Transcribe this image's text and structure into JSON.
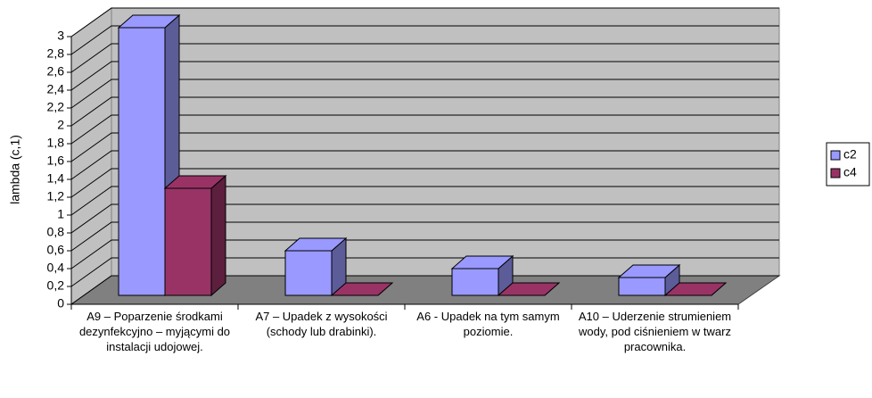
{
  "chart_data": {
    "type": "bar3d",
    "y_label": "lambda (c,1)",
    "categories": [
      "A9 – Poparzenie środkami dezynfekcyjno – myjącymi do instalacji udojowej.",
      "A7 – Upadek z wysokości (schody lub drabinki).",
      "A6 - Upadek na tym samym poziomie.",
      "A10 – Uderzenie strumieniem wody, pod ciśnieniem w twarz pracownika."
    ],
    "series": [
      {
        "name": "c2",
        "color": "#9999ff",
        "side": "#5c5c99",
        "values": [
          3,
          0.5,
          0.3,
          0.2
        ]
      },
      {
        "name": "c4",
        "color": "#993366",
        "side": "#5c1f3d",
        "values": [
          1.2,
          0,
          0,
          0
        ]
      }
    ],
    "ylim": [
      0,
      3
    ],
    "yticks": [
      0,
      {
        "value": 0.2,
        "label": "0,2"
      },
      {
        "value": 0.4,
        "label": "0,4"
      },
      {
        "value": 0.6,
        "label": "0,6"
      },
      {
        "value": 0.8,
        "label": "0,8"
      },
      1,
      {
        "value": 1.2,
        "label": "1,2"
      },
      {
        "value": 1.4,
        "label": "1,4"
      },
      {
        "value": 1.6,
        "label": "1,6"
      },
      {
        "value": 1.8,
        "label": "1,8"
      },
      2,
      {
        "value": 2.2,
        "label": "2,2"
      },
      {
        "value": 2.4,
        "label": "2,4"
      },
      {
        "value": 2.6,
        "label": "2,6"
      },
      {
        "value": 2.8,
        "label": "2,8"
      },
      3
    ],
    "grid": true,
    "legend": "right"
  }
}
